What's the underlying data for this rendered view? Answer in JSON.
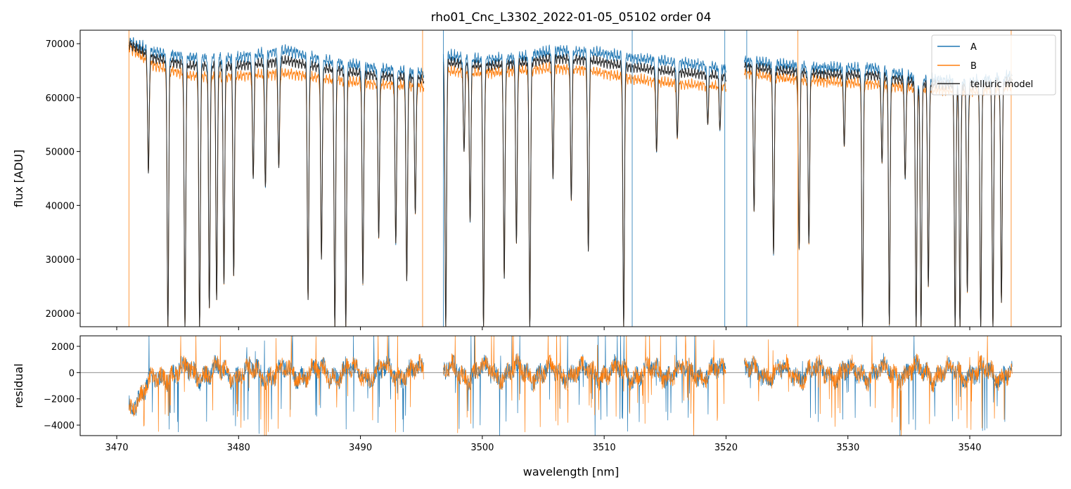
{
  "figure": {
    "title": "rho01_Cnc_L3302_2022-01-05_05102  order 04",
    "xlabel": "wavelength [nm]"
  },
  "colors": {
    "A": "#1f77b4",
    "B": "#ff7f0e",
    "telluric": "#2b2b2b",
    "zero_line": "#808080"
  },
  "chart_data": [
    {
      "type": "line",
      "panel": "top",
      "title": "rho01_Cnc_L3302_2022-01-05_05102  order 04",
      "xlabel": "",
      "ylabel": "flux [ADU]",
      "xlim": [
        3467,
        3547.5
      ],
      "ylim": [
        17500,
        72500
      ],
      "x_ticks": [
        3470,
        3480,
        3490,
        3500,
        3510,
        3520,
        3530,
        3540
      ],
      "y_ticks": [
        20000,
        30000,
        40000,
        50000,
        60000,
        70000
      ],
      "legend": {
        "position": "top-right",
        "entries": [
          "A",
          "B",
          "telluric model"
        ]
      },
      "grid": false,
      "series": [
        {
          "name": "A",
          "color": "#1f77b4"
        },
        {
          "name": "B",
          "color": "#ff7f0e"
        },
        {
          "name": "telluric model",
          "color": "#2b2b2b"
        }
      ],
      "continuum_segments": [
        {
          "x": [
            3471.0,
            3473.0,
            3476.0,
            3480.0,
            3484.0,
            3487.0,
            3491.0,
            3495.2
          ],
          "A": [
            71500,
            69500,
            68500,
            68500,
            69800,
            68000,
            66500,
            65500
          ],
          "B": [
            70500,
            67000,
            65000,
            65000,
            65500,
            64500,
            63500,
            63000
          ]
        },
        {
          "x": [
            3496.8,
            3500.0,
            3503.0,
            3506.0,
            3509.0,
            3512.0,
            3516.0,
            3520.0
          ],
          "A": [
            69000,
            68000,
            68500,
            69800,
            69500,
            68500,
            67500,
            66500
          ],
          "B": [
            66000,
            65500,
            66000,
            66500,
            66000,
            64500,
            63500,
            63000
          ]
        },
        {
          "x": [
            3521.5,
            3525.0,
            3528.0,
            3532.0,
            3536.0,
            3540.0,
            3543.5
          ],
          "A": [
            67800,
            67000,
            66500,
            66500,
            64500,
            64000,
            65000
          ],
          "B": [
            65500,
            64500,
            64000,
            63500,
            62500,
            62000,
            63000
          ]
        }
      ],
      "absorption_lines": [
        {
          "x": 3472.6,
          "min": 46000
        },
        {
          "x": 3474.2,
          "min": 17500
        },
        {
          "x": 3475.6,
          "min": 17500
        },
        {
          "x": 3476.8,
          "min": 17500
        },
        {
          "x": 3477.6,
          "min": 21000
        },
        {
          "x": 3478.2,
          "min": 22500
        },
        {
          "x": 3478.8,
          "min": 25500
        },
        {
          "x": 3479.6,
          "min": 27000
        },
        {
          "x": 3481.2,
          "min": 45000
        },
        {
          "x": 3482.2,
          "min": 43500
        },
        {
          "x": 3483.3,
          "min": 47000
        },
        {
          "x": 3485.7,
          "min": 22500
        },
        {
          "x": 3486.8,
          "min": 30000
        },
        {
          "x": 3487.9,
          "min": 17500
        },
        {
          "x": 3488.8,
          "min": 17500
        },
        {
          "x": 3490.2,
          "min": 25500
        },
        {
          "x": 3491.5,
          "min": 34000
        },
        {
          "x": 3492.9,
          "min": 33000
        },
        {
          "x": 3493.8,
          "min": 26000
        },
        {
          "x": 3494.5,
          "min": 38500
        },
        {
          "x": 3497.0,
          "min": 17500
        },
        {
          "x": 3498.5,
          "min": 50000
        },
        {
          "x": 3499.0,
          "min": 37000
        },
        {
          "x": 3500.1,
          "min": 17500
        },
        {
          "x": 3501.8,
          "min": 26500
        },
        {
          "x": 3502.8,
          "min": 33000
        },
        {
          "x": 3503.9,
          "min": 17500
        },
        {
          "x": 3505.8,
          "min": 45000
        },
        {
          "x": 3507.3,
          "min": 41000
        },
        {
          "x": 3508.7,
          "min": 31500
        },
        {
          "x": 3511.6,
          "min": 17500
        },
        {
          "x": 3514.3,
          "min": 50000
        },
        {
          "x": 3516.0,
          "min": 52500
        },
        {
          "x": 3518.5,
          "min": 55000
        },
        {
          "x": 3519.5,
          "min": 54000
        },
        {
          "x": 3522.3,
          "min": 39000
        },
        {
          "x": 3523.9,
          "min": 31000
        },
        {
          "x": 3526.0,
          "min": 32000
        },
        {
          "x": 3526.8,
          "min": 33000
        },
        {
          "x": 3529.7,
          "min": 51000
        },
        {
          "x": 3531.2,
          "min": 17500
        },
        {
          "x": 3532.8,
          "min": 48000
        },
        {
          "x": 3533.4,
          "min": 18000
        },
        {
          "x": 3534.7,
          "min": 45000
        },
        {
          "x": 3535.6,
          "min": 17500
        },
        {
          "x": 3536.0,
          "min": 17500
        },
        {
          "x": 3536.6,
          "min": 25000
        },
        {
          "x": 3538.8,
          "min": 17500
        },
        {
          "x": 3539.2,
          "min": 17500
        },
        {
          "x": 3539.8,
          "min": 24000
        },
        {
          "x": 3540.9,
          "min": 17500
        },
        {
          "x": 3541.9,
          "min": 17500
        },
        {
          "x": 3542.6,
          "min": 22000
        }
      ],
      "spike_lines": [
        {
          "x": 3471.0,
          "series": "B"
        },
        {
          "x": 3495.1,
          "series": "B"
        },
        {
          "x": 3496.8,
          "series": "A"
        },
        {
          "x": 3512.3,
          "series": "A"
        },
        {
          "x": 3519.9,
          "series": "A"
        },
        {
          "x": 3521.7,
          "series": "A"
        },
        {
          "x": 3525.9,
          "series": "B"
        },
        {
          "x": 3543.4,
          "series": "B"
        }
      ]
    },
    {
      "type": "line",
      "panel": "bottom",
      "xlabel": "wavelength [nm]",
      "ylabel": "residual",
      "xlim": [
        3467,
        3547.5
      ],
      "ylim": [
        -4800,
        2800
      ],
      "x_ticks": [
        3470,
        3480,
        3490,
        3500,
        3510,
        3520,
        3530,
        3540
      ],
      "y_ticks": [
        -4000,
        -2000,
        0,
        2000
      ],
      "zero_line": true,
      "grid": false,
      "series": [
        {
          "name": "A",
          "color": "#1f77b4"
        },
        {
          "name": "B",
          "color": "#ff7f0e"
        }
      ],
      "data_ranges": [
        [
          3471.0,
          3495.2
        ],
        [
          3496.8,
          3520.0
        ],
        [
          3521.5,
          3543.5
        ]
      ],
      "typical_range": [
        -1500,
        1500
      ],
      "extreme_range": [
        -4800,
        2800
      ]
    }
  ]
}
